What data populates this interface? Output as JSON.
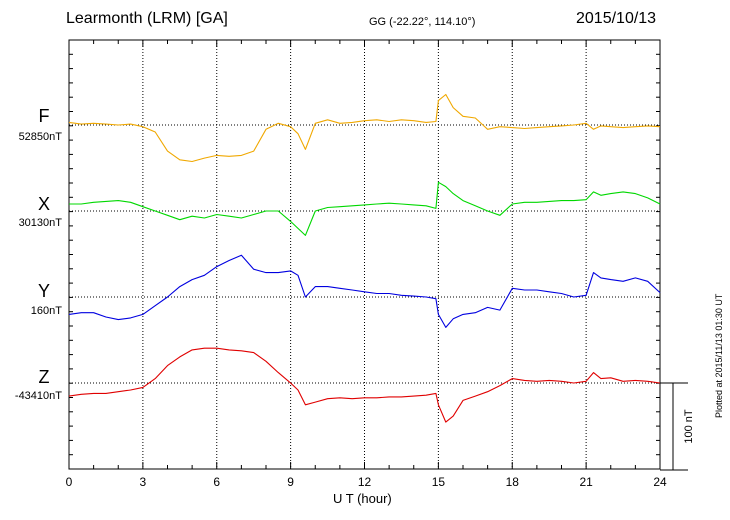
{
  "header": {
    "title": "Learmonth (LRM)  [GA]",
    "coords": "GG (-22.22°, 114.10°)",
    "date": "2015/10/13"
  },
  "footer": {
    "plotted": "Plotted at 2015/11/13 01:30 UT"
  },
  "chart_data": {
    "type": "line",
    "xlabel": "U T (hour)",
    "xlim": [
      0,
      24
    ],
    "x_ticks": [
      "0",
      "3",
      "6",
      "9",
      "12",
      "15",
      "18",
      "21",
      "24"
    ],
    "scale_label": "100 nT",
    "grid": true,
    "series": [
      {
        "name": "F",
        "baseline": "52850nT",
        "color": "#f0a800",
        "x": [
          0,
          0.5,
          1,
          1.5,
          2,
          2.5,
          3,
          3.5,
          4,
          4.5,
          5,
          5.5,
          6,
          6.5,
          7,
          7.5,
          8,
          8.5,
          9,
          9.3,
          9.6,
          10,
          10.5,
          11,
          11.5,
          12,
          12.5,
          13,
          13.5,
          14,
          14.5,
          14.9,
          15,
          15.3,
          15.6,
          16,
          16.5,
          17,
          17.5,
          18,
          18.5,
          19,
          19.5,
          20,
          20.5,
          21,
          21.3,
          21.6,
          22,
          22.5,
          23,
          23.5,
          24
        ],
        "values": [
          3,
          1,
          2,
          1,
          0,
          1,
          -2,
          -8,
          -30,
          -40,
          -42,
          -38,
          -35,
          -36,
          -35,
          -30,
          -5,
          2,
          -2,
          -10,
          -28,
          2,
          6,
          2,
          3,
          5,
          6,
          4,
          6,
          5,
          3,
          4,
          28,
          35,
          20,
          10,
          8,
          -5,
          -2,
          -3,
          -4,
          -3,
          -2,
          -1,
          0,
          2,
          -5,
          -1,
          -2,
          -3,
          -2,
          -1,
          -2
        ]
      },
      {
        "name": "X",
        "baseline": "30130nT",
        "color": "#00d800",
        "x": [
          0,
          0.5,
          1,
          1.5,
          2,
          2.5,
          3,
          3.5,
          4,
          4.5,
          5,
          5.5,
          6,
          6.5,
          7,
          7.5,
          8,
          8.5,
          9,
          9.3,
          9.6,
          10,
          10.5,
          11,
          11.5,
          12,
          12.5,
          13,
          13.5,
          14,
          14.5,
          14.9,
          15,
          15.3,
          15.6,
          16,
          16.5,
          17,
          17.5,
          18,
          18.5,
          19,
          19.5,
          20,
          20.5,
          21,
          21.3,
          21.6,
          22,
          22.5,
          23,
          23.5,
          24
        ],
        "values": [
          8,
          8,
          10,
          11,
          12,
          10,
          5,
          0,
          -5,
          -10,
          -6,
          -8,
          -4,
          -6,
          -8,
          -4,
          0,
          0,
          -12,
          -20,
          -28,
          0,
          4,
          5,
          6,
          7,
          8,
          9,
          8,
          7,
          6,
          3,
          33,
          28,
          20,
          12,
          6,
          0,
          -5,
          8,
          10,
          10,
          11,
          12,
          12,
          13,
          22,
          18,
          20,
          22,
          20,
          15,
          8
        ]
      },
      {
        "name": "Y",
        "baseline": "160nT",
        "color": "#0000e0",
        "x": [
          0,
          0.5,
          1,
          1.5,
          2,
          2.5,
          3,
          3.5,
          4,
          4.5,
          5,
          5.5,
          6,
          6.5,
          7,
          7.5,
          8,
          8.5,
          9,
          9.3,
          9.6,
          10,
          10.5,
          11,
          11.5,
          12,
          12.5,
          13,
          13.5,
          14,
          14.5,
          14.9,
          15,
          15.3,
          15.6,
          16,
          16.5,
          17,
          17.5,
          18,
          18.5,
          19,
          19.5,
          20,
          20.5,
          21,
          21.3,
          21.6,
          22,
          22.5,
          23,
          23.5,
          24
        ],
        "values": [
          -20,
          -18,
          -18,
          -23,
          -26,
          -24,
          -20,
          -10,
          0,
          12,
          20,
          25,
          35,
          42,
          48,
          32,
          28,
          28,
          30,
          25,
          0,
          12,
          12,
          10,
          8,
          6,
          4,
          4,
          2,
          1,
          0,
          -2,
          -20,
          -35,
          -25,
          -20,
          -18,
          -12,
          -15,
          10,
          8,
          8,
          6,
          4,
          0,
          2,
          28,
          22,
          20,
          18,
          22,
          18,
          5
        ]
      },
      {
        "name": "Z",
        "baseline": "-43410nT",
        "color": "#e00000",
        "x": [
          0,
          0.5,
          1,
          1.5,
          2,
          2.5,
          3,
          3.5,
          4,
          4.5,
          5,
          5.5,
          6,
          6.5,
          7,
          7.5,
          8,
          8.5,
          9,
          9.3,
          9.6,
          10,
          10.5,
          11,
          11.5,
          12,
          12.5,
          13,
          13.5,
          14,
          14.5,
          14.9,
          15,
          15.3,
          15.6,
          16,
          16.5,
          17,
          17.5,
          18,
          18.5,
          19,
          19.5,
          20,
          20.5,
          21,
          21.3,
          21.6,
          22,
          22.5,
          23,
          23.5,
          24
        ],
        "values": [
          -15,
          -13,
          -12,
          -12,
          -10,
          -8,
          -5,
          5,
          20,
          30,
          38,
          40,
          40,
          38,
          37,
          35,
          25,
          12,
          0,
          -8,
          -25,
          -22,
          -18,
          -17,
          -18,
          -17,
          -17,
          -16,
          -16,
          -15,
          -14,
          -12,
          -25,
          -45,
          -38,
          -20,
          -15,
          -10,
          -3,
          5,
          3,
          2,
          3,
          2,
          0,
          2,
          12,
          5,
          6,
          2,
          3,
          2,
          0
        ]
      }
    ]
  }
}
